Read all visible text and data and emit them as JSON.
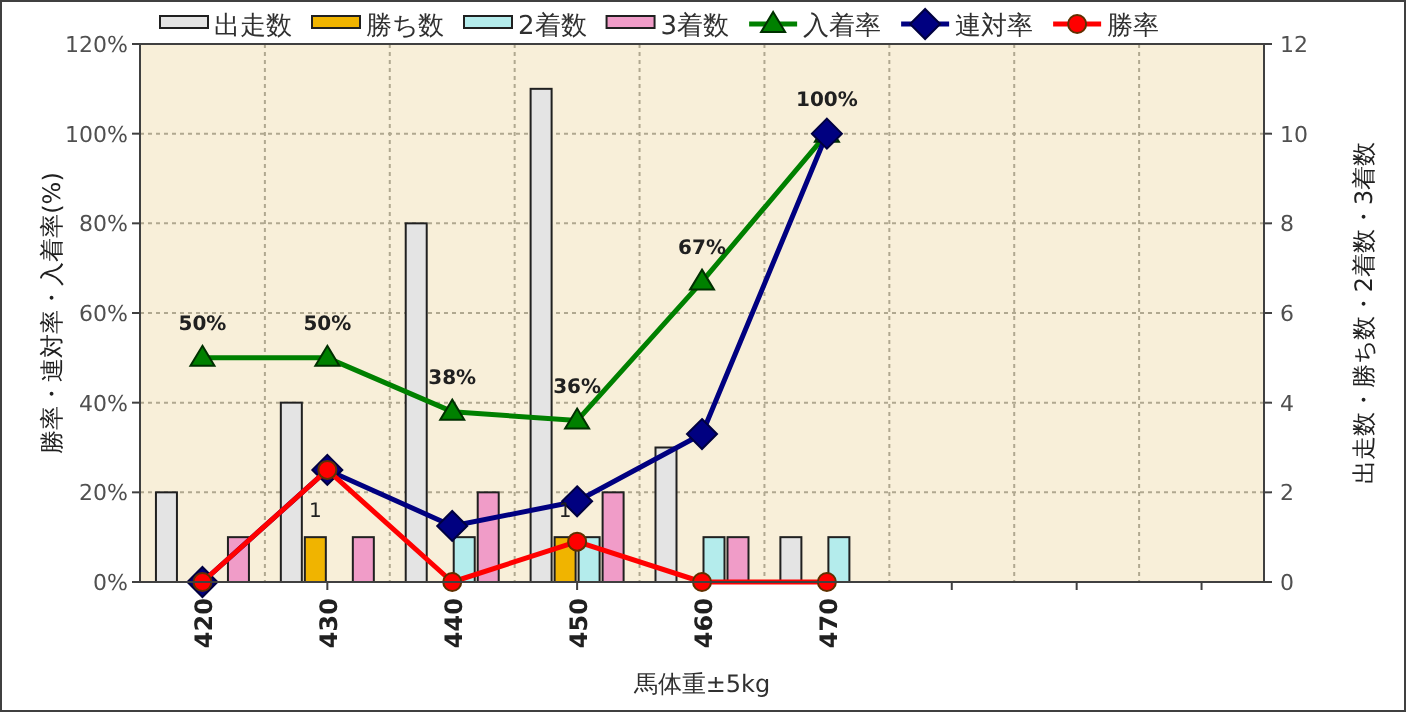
{
  "chart_data": {
    "type": "bar",
    "xlabel": "馬体重±5kg",
    "ylabel": "勝率・連対率・入着率(%)",
    "y2label": "出走数・勝ち数・2着数・3着数",
    "categories": [
      "420",
      "430",
      "440",
      "450",
      "460",
      "470",
      null,
      null,
      null
    ],
    "ylim": [
      0,
      120
    ],
    "yticks": [
      {
        "value": 0,
        "label": "0%"
      },
      {
        "value": 20,
        "label": "20%"
      },
      {
        "value": 40,
        "label": "40%"
      },
      {
        "value": 60,
        "label": "60%"
      },
      {
        "value": 80,
        "label": "80%"
      },
      {
        "value": 100,
        "label": "100%"
      },
      {
        "value": 120,
        "label": "120%"
      }
    ],
    "y2lim": [
      0,
      12
    ],
    "y2ticks": [
      0,
      2,
      4,
      6,
      8,
      10,
      12
    ],
    "grid": true,
    "legend": "top",
    "series": [
      {
        "name": "出走数",
        "axis": "y2",
        "color": "#e4e4e4",
        "values": [
          2,
          4,
          8,
          11,
          3,
          1,
          null,
          null,
          null
        ]
      },
      {
        "name": "勝ち数",
        "axis": "y2",
        "color": "#f0b400",
        "values": [
          0,
          1,
          0,
          1,
          0,
          0,
          null,
          null,
          null
        ],
        "value_labels": [
          null,
          "1",
          null,
          "1",
          null,
          null,
          null,
          null,
          null
        ]
      },
      {
        "name": "2着数",
        "axis": "y2",
        "color": "#b4ecec",
        "values": [
          0,
          0,
          1,
          1,
          1,
          1,
          null,
          null,
          null
        ]
      },
      {
        "name": "3着数",
        "axis": "y2",
        "color": "#f09cc8",
        "values": [
          1,
          1,
          2,
          2,
          1,
          0,
          null,
          null,
          null
        ]
      },
      {
        "name": "入着率",
        "type": "line",
        "axis": "y",
        "color": "#008000",
        "marker": "triangle",
        "values": [
          50,
          50,
          38,
          36,
          67,
          100,
          null,
          null,
          null
        ],
        "value_labels": [
          "50%",
          "50%",
          "38%",
          "36%",
          "67%",
          "100%",
          null,
          null,
          null
        ]
      },
      {
        "name": "連対率",
        "type": "line",
        "axis": "y",
        "color": "#000080",
        "marker": "diamond",
        "values": [
          0,
          25,
          12.5,
          18,
          33,
          100,
          null,
          null,
          null
        ]
      },
      {
        "name": "勝率",
        "type": "line",
        "axis": "y",
        "color": "#ff0000",
        "marker": "circle",
        "values": [
          0,
          25,
          0,
          9,
          0,
          0,
          null,
          null,
          null
        ]
      }
    ]
  }
}
